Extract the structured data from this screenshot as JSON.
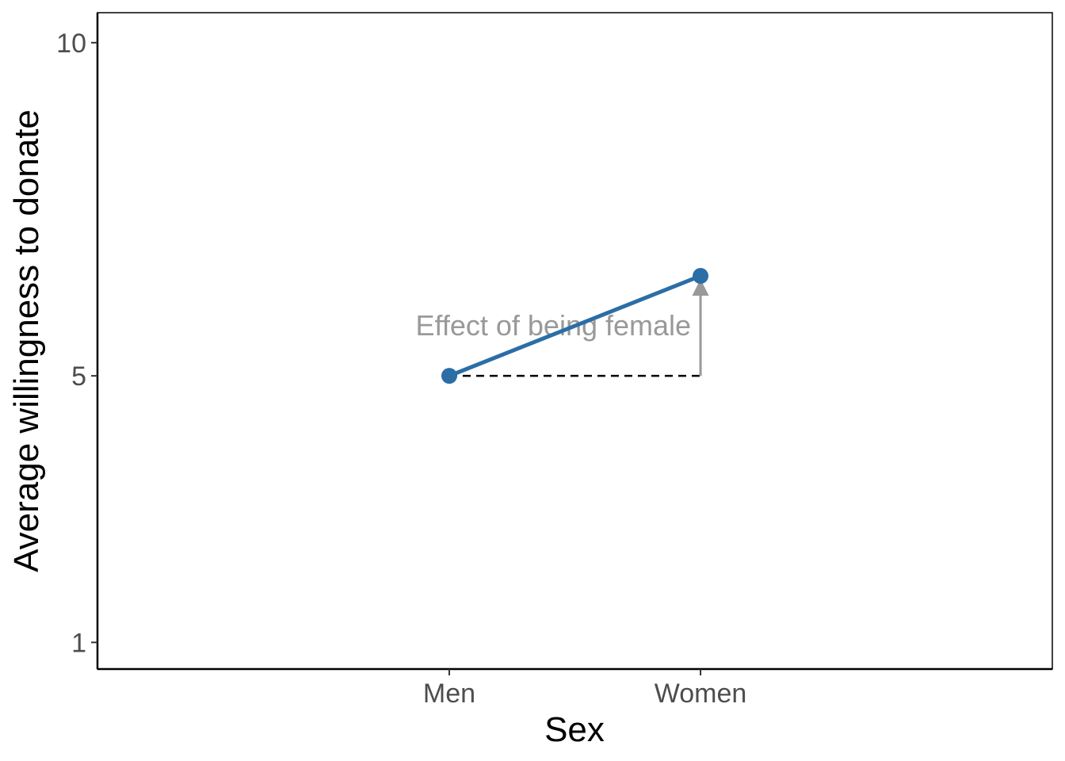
{
  "chart_data": {
    "type": "line",
    "categories": [
      "Men",
      "Women"
    ],
    "series": [
      {
        "values": [
          5.0,
          6.5
        ],
        "color": "#2b6ea6"
      }
    ],
    "xlabel": "Sex",
    "ylabel": "Average willingness to donate",
    "ylim": [
      0.6,
      10.45
    ],
    "yticks": [
      1,
      5,
      10
    ],
    "ytick_labels": [
      "1",
      "5",
      "10"
    ],
    "grid": false,
    "annotations": [
      {
        "text": "Effect of being female",
        "type": "arrow",
        "category": "Women",
        "from": 5.0,
        "to": 6.5,
        "color": "#999999"
      },
      {
        "type": "dashed-reference",
        "from_category": "Men",
        "to_category": "Women",
        "value": 5.0,
        "color": "#000000"
      }
    ]
  }
}
